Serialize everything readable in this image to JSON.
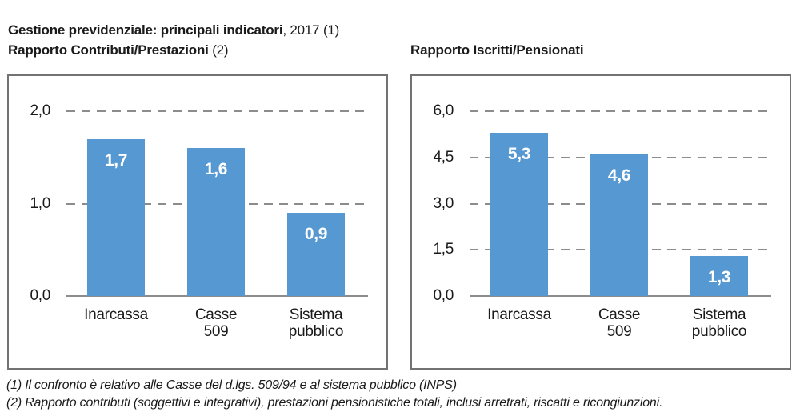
{
  "header": {
    "title_bold": "Gestione previdenziale: principali indicatori",
    "title_regular": ", 2017 (1)",
    "left_subtitle_bold": "Rapporto Contributi/Prestazioni",
    "left_subtitle_regular": " (2)",
    "right_subtitle_bold": "Rapporto Iscritti/Pensionati"
  },
  "footnotes": [
    "(1) Il confronto è relativo alle Casse del d.lgs. 509/94 e al sistema pubblico (INPS)",
    "(2) Rapporto contributi (soggettivi e integrativi), prestazioni pensionistiche totali, inclusi arretrati, riscatti e ricongiunzioni."
  ],
  "colors": {
    "bar": "#5598d2",
    "panel_border": "#737373",
    "gridline": "#8c8c8c",
    "axis_line": "#8c8c8c",
    "text": "#1a1a1a",
    "data_label": "#ffffff"
  },
  "chart_data": [
    {
      "type": "bar",
      "title": "Rapporto Contributi/Prestazioni (2)",
      "categories": [
        "Inarcassa",
        "Casse\n509",
        "Sistema\npubblico"
      ],
      "values": [
        1.7,
        1.6,
        0.9
      ],
      "value_labels": [
        "1,7",
        "1,6",
        "0,9"
      ],
      "ylim": [
        0,
        2.0
      ],
      "yticks": [
        0.0,
        1.0,
        2.0
      ],
      "ytick_labels": [
        "0,0",
        "1,0",
        "2,0"
      ],
      "grid": "horizontal-dashed",
      "legend": "none",
      "bar_color": "#5598d2"
    },
    {
      "type": "bar",
      "title": "Rapporto Iscritti/Pensionati",
      "categories": [
        "Inarcassa",
        "Casse\n509",
        "Sistema\npubblico"
      ],
      "values": [
        5.3,
        4.6,
        1.3
      ],
      "value_labels": [
        "5,3",
        "4,6",
        "1,3"
      ],
      "ylim": [
        0,
        6.0
      ],
      "yticks": [
        0.0,
        1.5,
        3.0,
        4.5,
        6.0
      ],
      "ytick_labels": [
        "0,0",
        "1,5",
        "3,0",
        "4,5",
        "6,0"
      ],
      "grid": "horizontal-dashed",
      "legend": "none",
      "bar_color": "#5598d2"
    }
  ]
}
